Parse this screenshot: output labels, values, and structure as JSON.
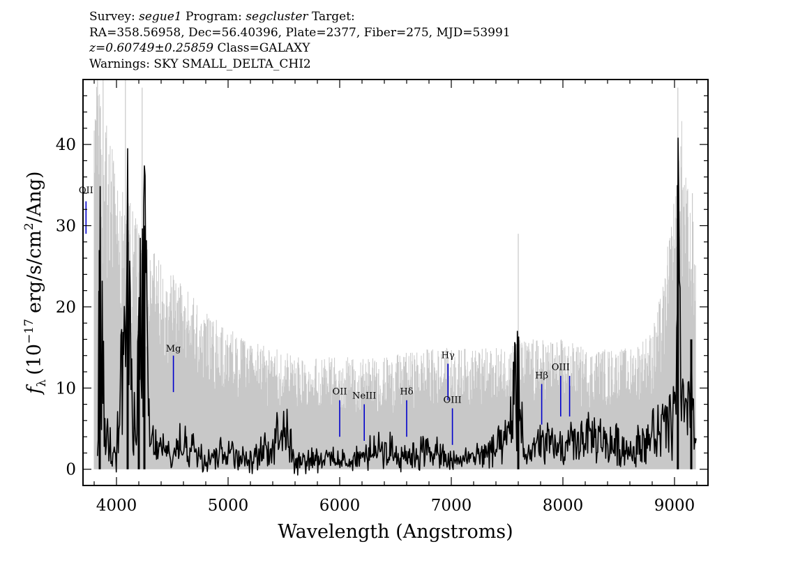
{
  "header": {
    "survey_label": "Survey:",
    "survey_value": "segue1",
    "program_label": "Program:",
    "program_value": "segcluster",
    "target_label": "Target:",
    "coords_line": "RA=358.56958, Dec=56.40396, Plate=2377, Fiber=275, MJD=53991",
    "z_value": "z=0.60749±0.25859",
    "class_text": "Class=GALAXY",
    "warnings_line": "Warnings: SKY SMALL_DELTA_CHI2"
  },
  "chart_data": {
    "type": "line",
    "title": "Survey: segue1 Program: segcluster Target:",
    "xlabel": "Wavelength (Angstroms)",
    "ylabel": "f_λ (10^-17 erg/s/cm^2/Ang)",
    "ylabel_parts": {
      "f": "f",
      "lambda": "λ",
      "open": "(10",
      "exp": "−17",
      "units": "erg/s/cm",
      "sq": "2",
      "tail": "/Ang)"
    },
    "xlim": [
      3700,
      9300
    ],
    "ylim": [
      -2,
      48
    ],
    "xticks": [
      4000,
      5000,
      6000,
      7000,
      8000,
      9000
    ],
    "xtick_labels": [
      "4000",
      "5000",
      "6000",
      "7000",
      "8000",
      "9000"
    ],
    "yticks": [
      0,
      10,
      20,
      30,
      40
    ],
    "ytick_labels": [
      "0",
      "10",
      "20",
      "30",
      "40"
    ],
    "series": [
      {
        "name": "flux_error",
        "color": "#c8c8c8",
        "x": [
          3800,
          3850,
          3950,
          4050,
          4150,
          4250,
          4400,
          4600,
          4800,
          5000,
          5200,
          5400,
          5600,
          5800,
          6000,
          6200,
          6400,
          6600,
          6800,
          7000,
          7200,
          7400,
          7600,
          7800,
          8000,
          8200,
          8400,
          8600,
          8800,
          8900,
          9000,
          9050,
          9100,
          9150,
          9190
        ],
        "values": [
          45,
          40,
          35,
          30,
          28,
          25,
          22,
          20,
          17,
          15,
          14,
          13,
          12.5,
          12,
          12,
          12,
          12,
          12.5,
          13,
          13,
          13,
          13,
          14,
          14,
          14,
          13,
          13,
          13,
          15,
          20,
          30,
          40,
          32,
          28,
          25
        ],
        "spikes": [
          [
            3830,
            48
          ],
          [
            3880,
            48
          ],
          [
            4080,
            48
          ],
          [
            4230,
            47
          ],
          [
            7600,
            29
          ],
          [
            9030,
            47
          ],
          [
            9160,
            34
          ]
        ]
      },
      {
        "name": "flux",
        "color": "#000000",
        "x": [
          3830,
          3850,
          3900,
          4000,
          4100,
          4150,
          4200,
          4250,
          4300,
          4400,
          4500,
          4600,
          4700,
          4800,
          5000,
          5200,
          5400,
          5500,
          5600,
          5800,
          6000,
          6200,
          6400,
          6600,
          6800,
          7000,
          7200,
          7400,
          7500,
          7600,
          7650,
          7800,
          8000,
          8200,
          8400,
          8600,
          8800,
          8900,
          9000,
          9030,
          9060,
          9100,
          9150,
          9180,
          9195
        ],
        "values": [
          2,
          27,
          5,
          3,
          28,
          5,
          17,
          30,
          4,
          3,
          2,
          4,
          3,
          2,
          3,
          1,
          4,
          8,
          1,
          2,
          1,
          2,
          3,
          2,
          3,
          1,
          2,
          3,
          4,
          15,
          2,
          4,
          3,
          5,
          4,
          3,
          5,
          6,
          8,
          35,
          10,
          6,
          16,
          3,
          6
        ]
      }
    ],
    "lines": [
      {
        "label": "OII",
        "display": "OII",
        "x": 3727,
        "y_bottom": 29,
        "y_top": 33,
        "label_y": 34,
        "color": "#0000cc"
      },
      {
        "label": "Mg",
        "display": "Mg",
        "x": 4510,
        "y_bottom": 9.5,
        "y_top": 14,
        "label_y": 14.5,
        "color": "#0000cc"
      },
      {
        "label": "OII",
        "display": "OII",
        "x": 6000,
        "y_bottom": 4,
        "y_top": 8.5,
        "label_y": 9.2,
        "color": "#0000cc"
      },
      {
        "label": "NeIII",
        "display": "NeIII",
        "x": 6220,
        "y_bottom": 3.5,
        "y_top": 8,
        "label_y": 8.7,
        "color": "#0000cc"
      },
      {
        "label": "Hδ",
        "display": "Hδ",
        "x": 6600,
        "y_bottom": 4,
        "y_top": 8.5,
        "label_y": 9.2,
        "color": "#0000cc"
      },
      {
        "label": "Hγ",
        "display": "Hγ",
        "x": 6970,
        "y_bottom": 8.5,
        "y_top": 13,
        "label_y": 13.7,
        "color": "#0000cc"
      },
      {
        "label": "OIII",
        "display": "OIII",
        "x": 7010,
        "y_bottom": 3,
        "y_top": 7.5,
        "label_y": 8.2,
        "color": "#0000cc"
      },
      {
        "label": "Hβ",
        "display": "Hβ",
        "x": 7810,
        "y_bottom": 5.5,
        "y_top": 10.5,
        "label_y": 11.2,
        "color": "#0000cc"
      },
      {
        "label": "OIII",
        "display": "OIII",
        "x": 7980,
        "y_bottom": 6.5,
        "y_top": 11.5,
        "label_y": 12.2,
        "color": "#0000cc"
      },
      {
        "label": "OIII",
        "display": "",
        "x": 8060,
        "y_bottom": 6.5,
        "y_top": 11.5,
        "label_y": 12.2,
        "color": "#0000cc"
      }
    ]
  }
}
